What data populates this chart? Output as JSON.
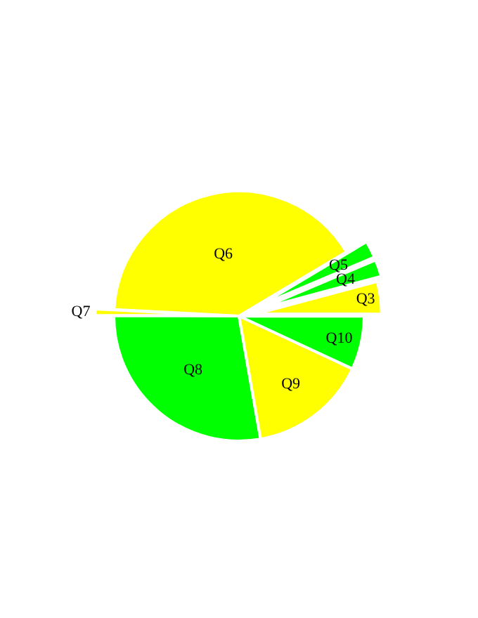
{
  "chart_data": {
    "type": "pie",
    "categories": [
      "Q3",
      "Q4",
      "Q5",
      "Q6",
      "Q7",
      "Q8",
      "Q9",
      "Q10"
    ],
    "values": [
      4.2,
      2.2,
      2.2,
      40.6,
      0.8,
      27.8,
      15.3,
      6.9
    ],
    "colors": [
      "#ffff00",
      "#00ff00",
      "#00ff00",
      "#ffff00",
      "#ffff00",
      "#00ff00",
      "#ffff00",
      "#00ff00"
    ],
    "legend": false
  }
}
